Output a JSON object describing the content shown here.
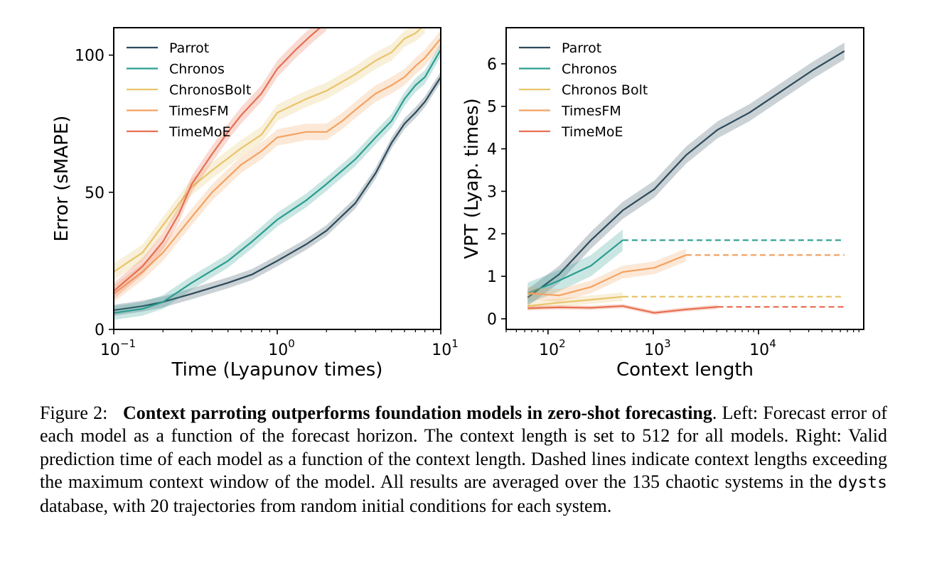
{
  "chart_data": [
    {
      "type": "line",
      "xlabel": "Time (Lyapunov times)",
      "ylabel": "Error (sMAPE)",
      "xscale": "log",
      "xlim": [
        0.1,
        10
      ],
      "ylim": [
        0,
        110
      ],
      "xticks": [
        {
          "value": 0.1,
          "base": "10",
          "exp": "−1"
        },
        {
          "value": 1,
          "base": "10",
          "exp": "0"
        },
        {
          "value": 10,
          "base": "10",
          "exp": "1"
        }
      ],
      "yticks": [
        0,
        50,
        100
      ],
      "legend": "top-left",
      "grid": false,
      "series": [
        {
          "name": "Parrot",
          "color": "#2c4a5a",
          "x": [
            0.1,
            0.15,
            0.2,
            0.3,
            0.5,
            0.7,
            1.0,
            1.5,
            2.0,
            3.0,
            4.0,
            5.0,
            6.0,
            7.0,
            8.0,
            10.0
          ],
          "y": [
            7,
            8.5,
            10,
            13,
            17,
            20,
            25,
            31,
            36,
            46,
            57,
            68,
            75,
            79,
            83,
            92
          ],
          "band": 2
        },
        {
          "name": "Chronos",
          "color": "#2a9d8f",
          "x": [
            0.1,
            0.15,
            0.2,
            0.3,
            0.5,
            0.7,
            1.0,
            1.5,
            2.0,
            3.0,
            4.0,
            5.0,
            6.0,
            7.0,
            8.0,
            10.0
          ],
          "y": [
            6,
            7.5,
            10,
            17,
            25,
            32,
            40,
            47,
            53,
            62,
            70,
            76,
            84,
            89,
            92,
            102
          ],
          "band": 2.5
        },
        {
          "name": "ChronosBolt",
          "color": "#e9c46a",
          "x": [
            0.1,
            0.15,
            0.2,
            0.3,
            0.4,
            0.6,
            0.8,
            1.0,
            1.5,
            2.0,
            3.0,
            4.0,
            5.0,
            6.0,
            7.0,
            8.0
          ],
          "y": [
            21,
            28,
            38,
            52,
            58,
            66,
            71,
            79,
            84,
            87,
            93,
            98,
            101,
            106,
            108,
            111
          ],
          "band": 3
        },
        {
          "name": "TimesFM",
          "color": "#f4a261",
          "x": [
            0.1,
            0.15,
            0.2,
            0.3,
            0.4,
            0.6,
            0.8,
            1.0,
            1.5,
            2.0,
            2.5,
            3.0,
            4.0,
            5.0,
            6.0,
            7.0,
            8.0,
            10.0
          ],
          "y": [
            13,
            21,
            28,
            41,
            50,
            60,
            65,
            70,
            72,
            72,
            76,
            80,
            86,
            89,
            92,
            96,
            99,
            106
          ],
          "band": 3
        },
        {
          "name": "TimeMoE",
          "color": "#e76f51",
          "x": [
            0.1,
            0.15,
            0.2,
            0.25,
            0.3,
            0.4,
            0.5,
            0.6,
            0.8,
            1.0,
            1.3,
            1.6,
            2.0
          ],
          "y": [
            14,
            23,
            32,
            42,
            53,
            64,
            72,
            78,
            86,
            95,
            102,
            107,
            112
          ],
          "band": 3
        }
      ]
    },
    {
      "type": "line",
      "xlabel": "Context length",
      "ylabel": "VPT (Lyap. times)",
      "xscale": "log",
      "xlim": [
        40,
        100000
      ],
      "ylim": [
        -0.25,
        6.85
      ],
      "xticks": [
        {
          "value": 100,
          "base": "10",
          "exp": "2"
        },
        {
          "value": 1000,
          "base": "10",
          "exp": "3"
        },
        {
          "value": 10000,
          "base": "10",
          "exp": "4"
        }
      ],
      "yticks": [
        0,
        1,
        2,
        3,
        4,
        5,
        6
      ],
      "legend": "top-left",
      "grid": false,
      "series": [
        {
          "name": "Parrot",
          "color": "#2c4a5a",
          "x": [
            64,
            128,
            256,
            512,
            1024,
            2048,
            4096,
            8192,
            16384,
            32768,
            65536
          ],
          "y": [
            0.5,
            1.05,
            1.85,
            2.55,
            3.05,
            3.85,
            4.45,
            4.85,
            5.35,
            5.85,
            6.3
          ],
          "band": 0.2,
          "dashed_to": null,
          "dashed_value": null
        },
        {
          "name": "Chronos",
          "color": "#2a9d8f",
          "x": [
            64,
            128,
            256,
            512
          ],
          "y": [
            0.6,
            0.9,
            1.25,
            1.85
          ],
          "band": 0.25,
          "dashed_to": 65536,
          "dashed_value": 1.85
        },
        {
          "name": "Chronos Bolt",
          "color": "#e9c46a",
          "x": [
            64,
            128,
            256,
            512
          ],
          "y": [
            0.3,
            0.38,
            0.45,
            0.52
          ],
          "band": 0.1,
          "dashed_to": 65536,
          "dashed_value": 0.52
        },
        {
          "name": "TimesFM",
          "color": "#f4a261",
          "x": [
            64,
            128,
            256,
            512,
            1024,
            2048
          ],
          "y": [
            0.6,
            0.55,
            0.75,
            1.1,
            1.2,
            1.5
          ],
          "band": 0.15,
          "dashed_to": 65536,
          "dashed_value": 1.5
        },
        {
          "name": "TimeMoE",
          "color": "#e76f51",
          "x": [
            64,
            128,
            256,
            512,
            1024,
            2048,
            4096
          ],
          "y": [
            0.25,
            0.27,
            0.26,
            0.3,
            0.14,
            0.22,
            0.28
          ],
          "band": 0.05,
          "dashed_to": 65536,
          "dashed_value": 0.28
        }
      ]
    }
  ],
  "caption": {
    "label": "Figure 2:",
    "bold": "Context parroting outperforms foundation models in zero-shot forecasting",
    "text1": ". Left: Forecast error of each model as a function of the forecast horizon. The context length is set to 512 for all models. Right: Valid prediction time of each model as a function of the context length. Dashed lines indicate context lengths exceeding the maximum context window of the model. All results are averaged over the 135 chaotic systems in the ",
    "code": "dysts",
    "text2": " database, with 20 trajectories from random initial conditions for each system."
  }
}
